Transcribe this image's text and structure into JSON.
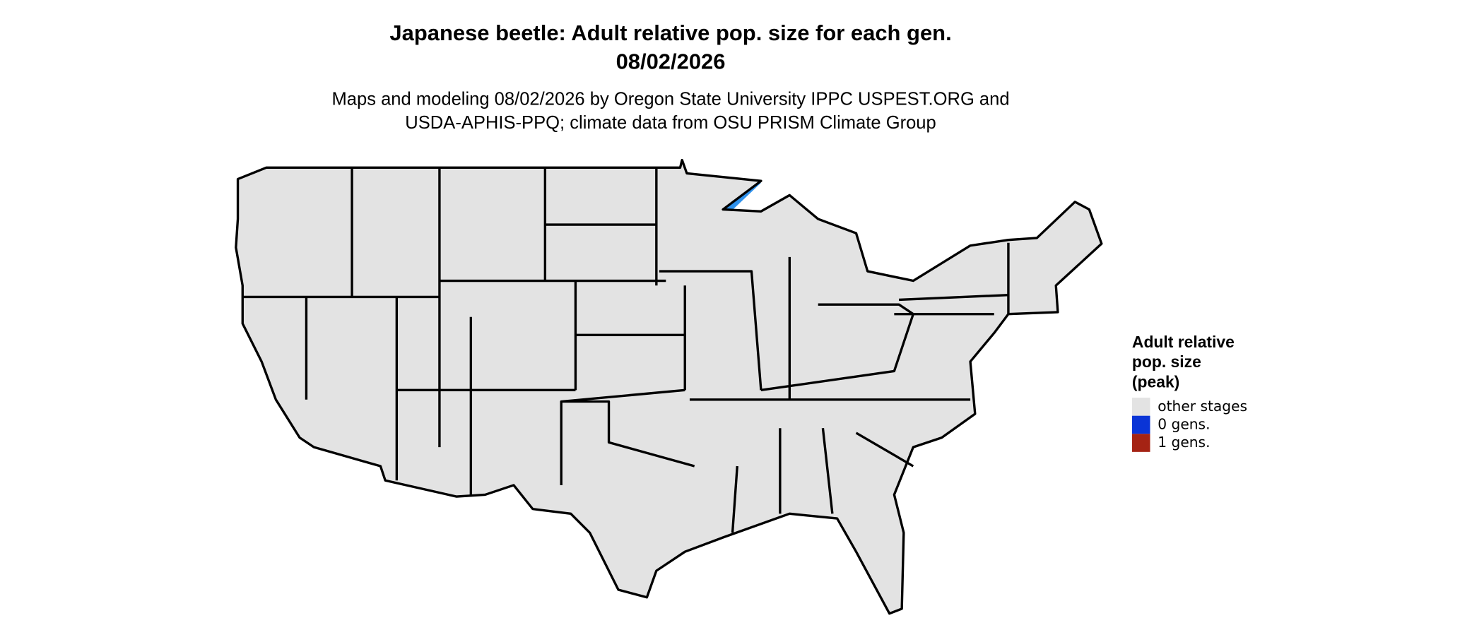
{
  "header": {
    "title": [
      "Japanese beetle: Adult relative pop. size for each gen.",
      "08/02/2026"
    ],
    "subtitle": [
      "Maps and modeling 08/02/2026 by Oregon State University IPPC USPEST.ORG and",
      "USDA-APHIS-PPQ; climate data from OSU PRISM Climate Group"
    ]
  },
  "legend": {
    "title": [
      "Adult relative",
      "pop. size",
      "(peak)"
    ],
    "items": [
      {
        "label": "other stages",
        "color": "#e3e3e3"
      },
      {
        "label": "0 gens.",
        "color": "#0a34d6"
      },
      {
        "label": "1 gens.",
        "color": "#a52314"
      }
    ]
  }
}
